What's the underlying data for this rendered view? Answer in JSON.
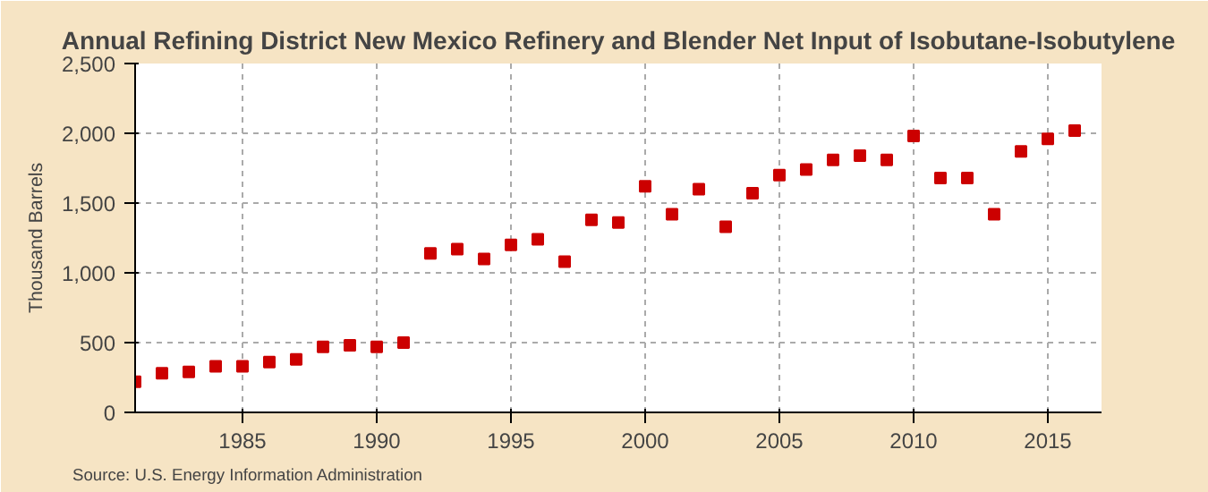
{
  "chart_data": {
    "type": "scatter",
    "title": "Annual Refining District New Mexico Refinery and Blender Net Input of Isobutane-Isobutylene",
    "ylabel": "Thousand Barrels",
    "x": [
      1981,
      1982,
      1983,
      1984,
      1985,
      1986,
      1987,
      1988,
      1989,
      1990,
      1991,
      1992,
      1993,
      1994,
      1995,
      1996,
      1997,
      1998,
      1999,
      2000,
      2001,
      2002,
      2003,
      2004,
      2005,
      2006,
      2007,
      2008,
      2009,
      2010,
      2011,
      2012,
      2013,
      2014,
      2015,
      2016
    ],
    "series": [
      {
        "color": "#cc0000",
        "values": [
          220,
          280,
          290,
          330,
          330,
          360,
          380,
          470,
          480,
          470,
          500,
          1140,
          1170,
          1100,
          1200,
          1240,
          1080,
          1380,
          1360,
          1620,
          1420,
          1600,
          1330,
          1570,
          1700,
          1740,
          1810,
          1840,
          1810,
          1980,
          1680,
          1680,
          1420,
          1870,
          1960,
          2020
        ]
      }
    ],
    "xlim": [
      1981,
      2017
    ],
    "xticks": [
      1985,
      1990,
      1995,
      2000,
      2005,
      2010,
      2015
    ],
    "ylim": [
      0,
      2500
    ],
    "yticks": [
      {
        "value": 0,
        "label": "0"
      },
      {
        "value": 500,
        "label": "500"
      },
      {
        "value": 1000,
        "label": "1,000"
      },
      {
        "value": 1500,
        "label": "1,500"
      },
      {
        "value": 2000,
        "label": "2,000"
      },
      {
        "value": 2500,
        "label": "2,500"
      }
    ],
    "grid": true,
    "marker": "square",
    "annotations": [
      "Source: U.S. Energy Information Administration"
    ]
  }
}
